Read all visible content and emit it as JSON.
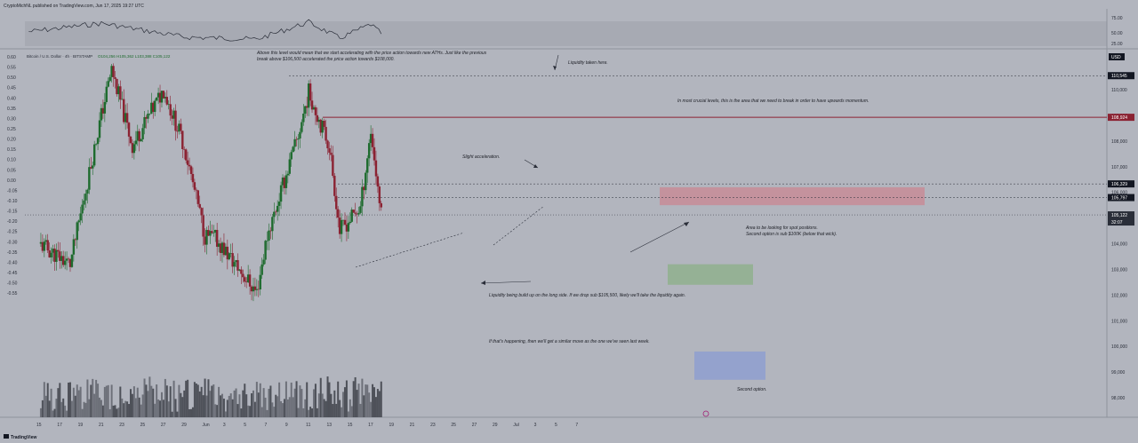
{
  "header": {
    "publisher": "CryptoMichNL published on TradingView.com, Jun 17, 2025 19:27 UTC"
  },
  "legend": {
    "symbol": "Bitcoin / U.S. Dollar · 4h · BITSTAMP",
    "ohlc": "O104,256 H105,362 L103,388 C105,122"
  },
  "footer": {
    "logo_text": "TradingView"
  },
  "colors": {
    "background": "#b2b5be",
    "up": "#1e6b2e",
    "down": "#8b2232",
    "resistance": "#8b2232",
    "supply_zone": "#c98792",
    "demand_zone": "#8fb08e",
    "target_zone": "#8e9fd0",
    "rsi_line": "#2a2e39"
  },
  "chart_data": [
    {
      "type": "candlestick",
      "title": "Bitcoin / U.S. Dollar · 4h · BITSTAMP",
      "currency": "USD",
      "y_unit": "USD",
      "anchor_closes": [
        {
          "x": "Jun 1",
          "y": 104200
        },
        {
          "x": "Jun 5",
          "y": 102100
        },
        {
          "x": "Jun 6",
          "y": 104300
        },
        {
          "x": "Jun 9",
          "y": 108200
        },
        {
          "x": "Jun 10",
          "y": 109900
        },
        {
          "x": "Jun 12",
          "y": 107800
        },
        {
          "x": "Jun 13",
          "y": 104500
        },
        {
          "x": "Jun 15",
          "y": 105400
        },
        {
          "x": "Jun 16",
          "y": 108400
        },
        {
          "x": "Jun 17",
          "y": 105122
        }
      ],
      "y_ticks_right": [
        "110,000",
        "109,000",
        "108,000",
        "107,000",
        "106,000",
        "105,000",
        "104,000",
        "103,000",
        "102,000",
        "101,000",
        "100,000",
        "99,000",
        "98,000"
      ],
      "y_ticks_left": [
        "0.60",
        "0.55",
        "0.50",
        "0.45",
        "0.40",
        "0.35",
        "0.30",
        "0.25",
        "0.20",
        "0.15",
        "0.10",
        "0.05",
        "0.00",
        "-0.05",
        "-0.10",
        "-0.15",
        "-0.20",
        "-0.25",
        "-0.30",
        "-0.35",
        "-0.40",
        "-0.45",
        "-0.50",
        "-0.55"
      ],
      "x_ticks": [
        "15",
        "17",
        "19",
        "21",
        "23",
        "25",
        "27",
        "29",
        "Jun",
        "3",
        "5",
        "7",
        "9",
        "11",
        "13",
        "15",
        "17",
        "19",
        "21",
        "23",
        "25",
        "27",
        "29",
        "Jul",
        "3",
        "5",
        "7"
      ],
      "price_labels": [
        {
          "value": 110545,
          "label": "110,545",
          "style": "dashed"
        },
        {
          "value": 108924,
          "label": "108,924",
          "style": "resistance"
        },
        {
          "value": 106329,
          "label": "106,329",
          "style": "dashed"
        },
        {
          "value": 105797,
          "label": "105,797",
          "style": "dashed"
        },
        {
          "value": 105122,
          "label": "105,122",
          "style": "current",
          "countdown": "32:07"
        }
      ],
      "currency_label": "USD",
      "zones": [
        {
          "name": "supply",
          "from": 105500,
          "to": 106200
        },
        {
          "name": "demand",
          "from": 102400,
          "to": 103200
        },
        {
          "name": "target",
          "from": 98700,
          "to": 99800
        }
      ],
      "annotations": [
        "Above this level would mean that we start accelerating with the price action towards new ATHs. Just like the previous",
        "break above $106,500 accelerated the price action towards $108,000.",
        "Liquidity taken here.",
        "In most crucial levels, this is the area that we need to break in order to have upwards momentum.",
        "Slight acceleration.",
        "Area to be looking for spot positions.",
        "Second option is sub $100K (below that wick).",
        "Liquidity being build up on the long side. If we drop sub $105,500, likely we'll take the liquidity again.",
        "If that's happening, then we'll get a similar move as the one we've seen last week.",
        "Second option."
      ]
    },
    {
      "type": "line",
      "title": "",
      "y_ticks": [
        "75.00",
        "50.00",
        "25.00"
      ],
      "ylim": [
        25,
        75
      ],
      "anchor_values": [
        {
          "x": "May 14",
          "y": 52
        },
        {
          "x": "May 21",
          "y": 68
        },
        {
          "x": "May 29",
          "y": 42
        },
        {
          "x": "Jun 5",
          "y": 38
        },
        {
          "x": "Jun 10",
          "y": 70
        },
        {
          "x": "Jun 13",
          "y": 40
        },
        {
          "x": "Jun 16",
          "y": 66
        },
        {
          "x": "Jun 17",
          "y": 48
        }
      ]
    }
  ]
}
